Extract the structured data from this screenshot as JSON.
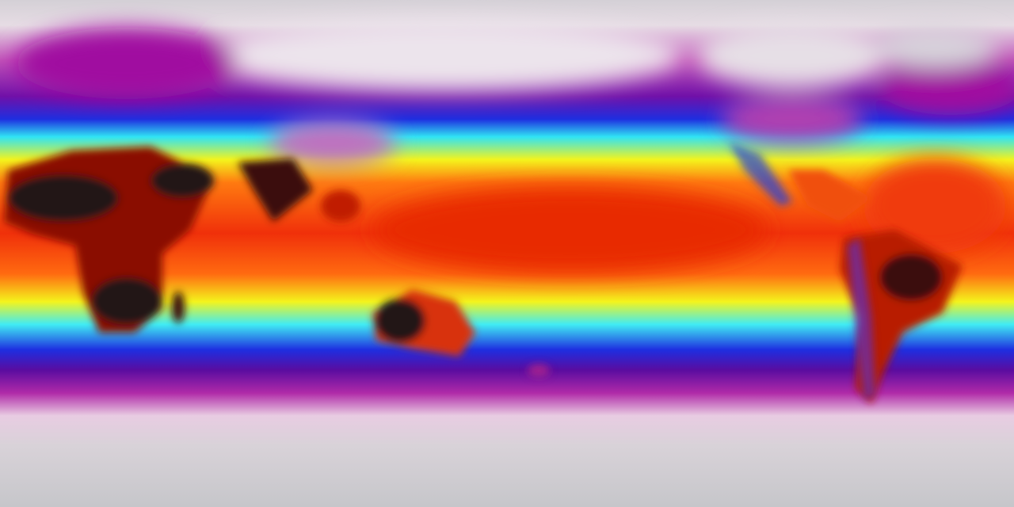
{
  "map": {
    "projection": "equirectangular",
    "colorscale": [
      "#d4d0d6",
      "#e6d8e4",
      "#b02aa8",
      "#5a0ca0",
      "#1e2ee0",
      "#30e4f4",
      "#f4f41c",
      "#ff8a10",
      "#f0300a",
      "#7a0a04",
      "#1a1010"
    ]
  }
}
